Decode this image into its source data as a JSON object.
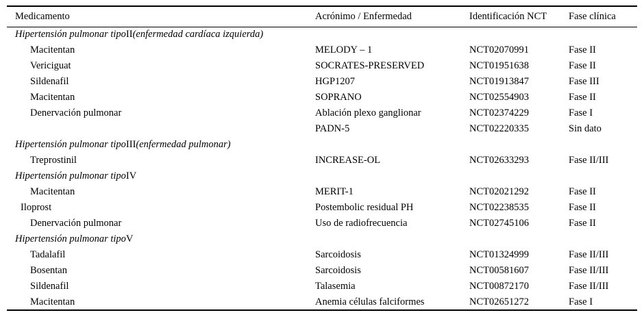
{
  "table": {
    "columns": [
      "Medicamento",
      "Acrónimo / Enfermedad",
      "Identificación NCT",
      "Fase clínica"
    ],
    "rows": [
      {
        "type": "section",
        "prefix": "Hipertensión pulmonar tipo",
        "numeral": "II",
        "suffix": "(enfermedad cardíaca izquierda)"
      },
      {
        "type": "data",
        "indent": 1,
        "cells": [
          "Macitentan",
          "MELODY – 1",
          "NCT02070991",
          "Fase II"
        ]
      },
      {
        "type": "data",
        "indent": 1,
        "cells": [
          "Vericiguat",
          "SOCRATES-PRESERVED",
          "NCT01951638",
          "Fase II"
        ]
      },
      {
        "type": "data",
        "indent": 1,
        "cells": [
          "Sildenafil",
          "HGP1207",
          "NCT01913847",
          "Fase III"
        ]
      },
      {
        "type": "data",
        "indent": 1,
        "cells": [
          "Macitentan",
          "SOPRANO",
          "NCT02554903",
          "Fase II"
        ]
      },
      {
        "type": "data",
        "indent": 1,
        "cells": [
          "Denervación pulmonar",
          "Ablación plexo ganglionar",
          "NCT02374229",
          "Fase I"
        ]
      },
      {
        "type": "data",
        "indent": 1,
        "cells": [
          "",
          "PADN-5",
          "NCT02220335",
          "Sin dato"
        ]
      },
      {
        "type": "section",
        "prefix": "Hipertensión pulmonar tipo",
        "numeral": "III",
        "suffix": "(enfermedad pulmonar)"
      },
      {
        "type": "data",
        "indent": 1,
        "cells": [
          "Treprostinil",
          "INCREASE-OL",
          "NCT02633293",
          "Fase II/III"
        ]
      },
      {
        "type": "section",
        "prefix": "Hipertensión pulmonar tipo",
        "numeral": "IV",
        "suffix": ""
      },
      {
        "type": "data",
        "indent": 1,
        "cells": [
          "Macitentan",
          "MERIT-1",
          "NCT02021292",
          "Fase II"
        ]
      },
      {
        "type": "data",
        "indent": 0,
        "cells": [
          "Iloprost",
          "Postembolic residual PH",
          "NCT02238535",
          "Fase II"
        ]
      },
      {
        "type": "data",
        "indent": 1,
        "cells": [
          "Denervación pulmonar",
          "Uso de radiofrecuencia",
          "NCT02745106",
          "Fase II"
        ]
      },
      {
        "type": "section",
        "prefix": "Hipertensión pulmonar tipo",
        "numeral": "V",
        "suffix": ""
      },
      {
        "type": "data",
        "indent": 1,
        "cells": [
          "Tadalafil",
          "Sarcoidosis",
          "NCT01324999",
          "Fase II/III"
        ]
      },
      {
        "type": "data",
        "indent": 1,
        "cells": [
          "Bosentan",
          "Sarcoidosis",
          "NCT00581607",
          "Fase II/III"
        ]
      },
      {
        "type": "data",
        "indent": 1,
        "cells": [
          "Sildenafil",
          "Talasemia",
          "NCT00872170",
          "Fase II/III"
        ]
      },
      {
        "type": "data",
        "indent": 1,
        "cells": [
          "Macitentan",
          "Anemia células falciformes",
          "NCT02651272",
          "Fase I"
        ]
      }
    ]
  }
}
